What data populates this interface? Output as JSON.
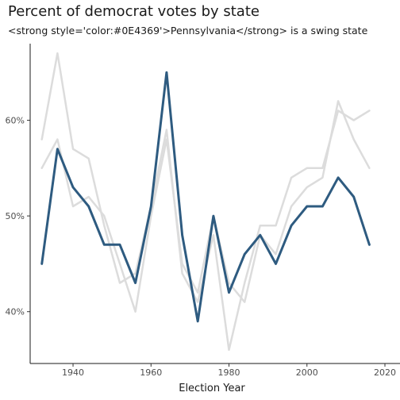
{
  "chart_data": {
    "type": "line",
    "title": "Percent of democrat votes by state",
    "subtitle": "<strong style='color:#0E4369'>Pennsylvania</strong> is a swing state",
    "xlabel": "Election Year",
    "ylabel": "",
    "xlim": [
      1929,
      2020
    ],
    "ylim": [
      35,
      68
    ],
    "x_ticks": [
      1940,
      1960,
      1980,
      2000,
      2020
    ],
    "x_tick_labels": [
      "1940",
      "1960",
      "1980",
      "2000",
      "2020"
    ],
    "y_ticks": [
      0.4,
      0.5,
      0.6
    ],
    "y_tick_labels": [
      "40%",
      "50%",
      "60%"
    ],
    "grid": false,
    "highlight_color": "#2E5B80",
    "background_color": "#DCDCDC",
    "x": [
      1932,
      1936,
      1940,
      1944,
      1948,
      1952,
      1956,
      1960,
      1964,
      1968,
      1972,
      1976,
      1980,
      1984,
      1988,
      1992,
      1996,
      2000,
      2004,
      2008,
      2012,
      2016
    ],
    "series": [
      {
        "highlight": true,
        "values": [
          45,
          57,
          53,
          51,
          47,
          47,
          43,
          51,
          65,
          48,
          39,
          50,
          42,
          46,
          48,
          45,
          49,
          51,
          51,
          54,
          52,
          47
        ]
      },
      {
        "highlight": false,
        "values": [
          58,
          67,
          57,
          56,
          49,
          43,
          44,
          51,
          59,
          44,
          41,
          48,
          36,
          43,
          49,
          49,
          54,
          55,
          55,
          61,
          60,
          61
        ]
      },
      {
        "highlight": false,
        "values": [
          55,
          58,
          51,
          52,
          50,
          45,
          40,
          50,
          58,
          45,
          42,
          50,
          43,
          41,
          48,
          46,
          51,
          53,
          54,
          62,
          58,
          55
        ]
      }
    ]
  }
}
